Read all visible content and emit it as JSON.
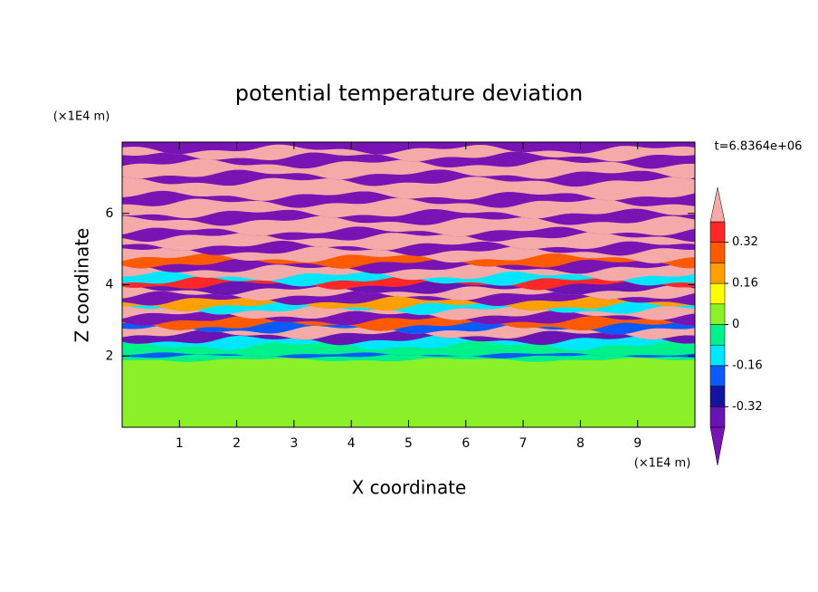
{
  "chart_data": {
    "type": "contour",
    "title": "potential temperature deviation",
    "xlabel": "X coordinate",
    "ylabel": "Z coordinate",
    "x_unit": "(×1E4 m)",
    "y_unit": "(×1E4 m)",
    "time_label": "t=6.8364e+06",
    "xlim": [
      0,
      10
    ],
    "ylim": [
      0,
      8
    ],
    "xticks": [
      1,
      2,
      3,
      4,
      5,
      6,
      7,
      8,
      9
    ],
    "yticks": [
      2,
      4,
      6
    ],
    "levels": [
      -0.4,
      -0.32,
      -0.24,
      -0.16,
      -0.08,
      0,
      0.08,
      0.16,
      0.24,
      0.32,
      0.4
    ],
    "colors": [
      "#6a14b4",
      "#1414a0",
      "#0a5aff",
      "#00e6ff",
      "#00f08c",
      "#8cf028",
      "#ffff00",
      "#ffa000",
      "#ff5a00",
      "#ff2828"
    ],
    "under_color": "#7814b4",
    "over_color": "#f4aaa8",
    "colorbar_ticks": [
      0.32,
      0.16,
      0,
      -0.16,
      -0.32
    ],
    "field": {
      "z": [
        0,
        1.9,
        2.0,
        2.05,
        2.3,
        2.45,
        2.6,
        2.75,
        2.85,
        3.0,
        3.15,
        3.3,
        3.4,
        3.55,
        3.7,
        3.85,
        4.0,
        4.1,
        4.25,
        4.45,
        4.6,
        4.75,
        4.95,
        5.1,
        5.35,
        5.5,
        5.8,
        6.0,
        6.3,
        6.5,
        6.9,
        7.1,
        7.4,
        7.6,
        7.8,
        8.0
      ],
      "values": [
        0.04,
        -0.04,
        -0.2,
        -0.04,
        -0.12,
        -0.36,
        0.44,
        -0.2,
        0.28,
        -0.44,
        0.44,
        -0.12,
        0.2,
        -0.44,
        0.44,
        -0.36,
        0.36,
        -0.12,
        0.44,
        -0.44,
        0.28,
        0.44,
        -0.44,
        0.44,
        -0.44,
        0.44,
        -0.44,
        0.44,
        -0.44,
        0.44,
        -0.44,
        0.44,
        -0.44,
        0.44,
        -0.44
      ]
    }
  }
}
